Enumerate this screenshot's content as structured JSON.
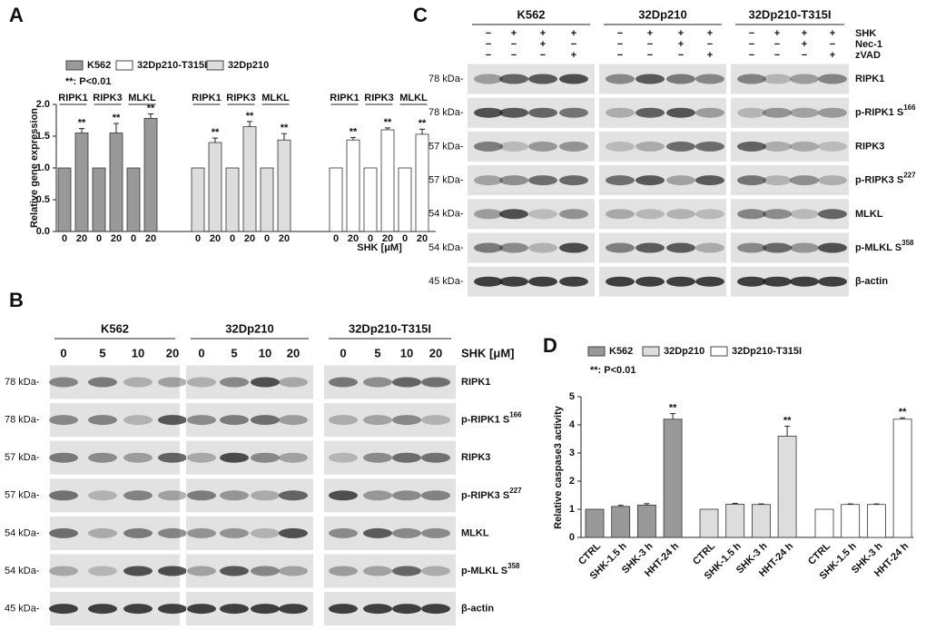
{
  "chart_data": [
    {
      "type": "bar",
      "panel": "A",
      "note": "**: P<0.01",
      "annotation": "**",
      "y_label": "Relative gene expression",
      "x_label": "SHK [μM]",
      "genes": [
        "RIPK1",
        "RIPK3",
        "MLKL"
      ],
      "categories": [
        "0",
        "20",
        "0",
        "20",
        "0",
        "20"
      ],
      "ylim": [
        0,
        2
      ],
      "yticks": [
        {
          "value": 0,
          "label": "0.0"
        },
        {
          "value": 0.5,
          "label": "0.5"
        },
        {
          "value": 1,
          "label": "1.0"
        },
        {
          "value": 1.5,
          "label": "1.5"
        },
        {
          "value": 2,
          "label": "2.0"
        }
      ],
      "series": [
        {
          "name": "K562",
          "color": "#999999",
          "values": [
            1,
            1.55,
            1,
            1.55,
            1,
            1.78
          ],
          "errors": [
            0,
            0.07,
            0,
            0.15,
            0,
            0.07
          ]
        },
        {
          "name": "32Dp210-T315I",
          "color": "#ffffff",
          "values": [
            1,
            1.44,
            1,
            1.6,
            1,
            1.53
          ],
          "errors": [
            0,
            0.04,
            0,
            0.03,
            0,
            0.08
          ]
        },
        {
          "name": "32Dp210",
          "color": "#dddddd",
          "values": [
            1,
            1.4,
            1,
            1.65,
            1,
            1.44
          ],
          "errors": [
            0,
            0.07,
            0,
            0.08,
            0,
            0.1
          ]
        }
      ]
    },
    {
      "type": "bar",
      "panel": "D",
      "note": "**: P<0.01",
      "annotation": "**",
      "y_label": "Relative caspase3 activity",
      "categories": [
        "CTRL",
        "SHK-1.5 h",
        "SHK-3 h",
        "HHT-24 h"
      ],
      "ylim": [
        0,
        5
      ],
      "yticks": [
        0,
        1,
        2,
        3,
        4,
        5
      ],
      "series": [
        {
          "name": "K562",
          "color": "#999999",
          "values": [
            1,
            1.1,
            1.15,
            4.2
          ],
          "errors": [
            0,
            0.04,
            0.05,
            0.2
          ]
        },
        {
          "name": "32Dp210",
          "color": "#dddddd",
          "values": [
            1,
            1.18,
            1.17,
            3.6
          ],
          "errors": [
            0,
            0.03,
            0.02,
            0.35
          ]
        },
        {
          "name": "32Dp210-T315I",
          "color": "#ffffff",
          "values": [
            1,
            1.17,
            1.17,
            4.2
          ],
          "errors": [
            0,
            0.02,
            0.02,
            0.05
          ]
        }
      ]
    }
  ],
  "blots": [
    {
      "panel": "B",
      "groups": [
        "K562",
        "32Dp210",
        "32Dp210-T315I"
      ],
      "lanes": [
        "0",
        "5",
        "10",
        "20"
      ],
      "lane_label": "SHK [μM]",
      "rows": [
        {
          "kda": "78 kDa-",
          "name": "RIPK1"
        },
        {
          "kda": "78 kDa-",
          "name": "p-RIPK1 S",
          "site": "166"
        },
        {
          "kda": "57 kDa-",
          "name": "RIPK3"
        },
        {
          "kda": "57 kDa-",
          "name": "p-RIPK3 S",
          "site": "227"
        },
        {
          "kda": "54 kDa-",
          "name": "MLKL"
        },
        {
          "kda": "54 kDa-",
          "name": "p-MLKL S",
          "site": "358"
        },
        {
          "kda": "45 kDa-",
          "name": "β-actin"
        }
      ]
    },
    {
      "panel": "C",
      "groups": [
        "K562",
        "32Dp210",
        "32Dp210-T315I"
      ],
      "treatments": [
        {
          "name": "SHK",
          "marks": [
            "−",
            "+",
            "+",
            "+"
          ]
        },
        {
          "name": "Nec-1",
          "marks": [
            "−",
            "−",
            "+",
            "−"
          ]
        },
        {
          "name": "zVAD",
          "marks": [
            "−",
            "−",
            "−",
            "+"
          ]
        }
      ],
      "rows": [
        {
          "kda": "78 kDa-",
          "name": "RIPK1"
        },
        {
          "kda": "78 kDa-",
          "name": "p-RIPK1 S",
          "site": "166"
        },
        {
          "kda": "57 kDa-",
          "name": "RIPK3"
        },
        {
          "kda": "57 kDa-",
          "name": "p-RIPK3 S",
          "site": "227"
        },
        {
          "kda": "54 kDa-",
          "name": "MLKL"
        },
        {
          "kda": "54 kDa-",
          "name": "p-MLKL S",
          "site": "358"
        },
        {
          "kda": "45 kDa-",
          "name": "β-actin"
        }
      ]
    }
  ]
}
